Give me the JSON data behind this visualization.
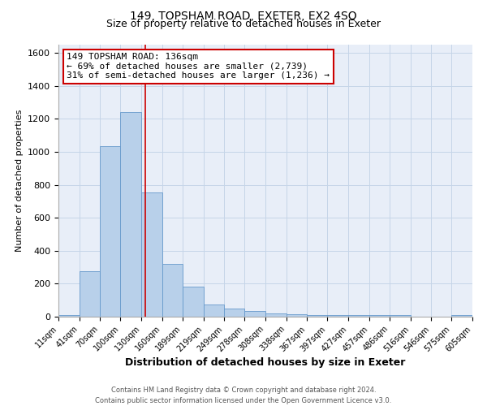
{
  "title": "149, TOPSHAM ROAD, EXETER, EX2 4SQ",
  "subtitle": "Size of property relative to detached houses in Exeter",
  "xlabel": "Distribution of detached houses by size in Exeter",
  "ylabel": "Number of detached properties",
  "bar_color": "#b8d0ea",
  "bar_edge_color": "#6699cc",
  "background_color": "#e8eef8",
  "grid_color": "#c5d5e8",
  "vline_x": 136,
  "vline_color": "#cc0000",
  "bin_edges": [
    11,
    41,
    70,
    100,
    130,
    160,
    189,
    219,
    249,
    278,
    308,
    338,
    367,
    397,
    427,
    457,
    486,
    516,
    546,
    575,
    605
  ],
  "bar_heights": [
    10,
    275,
    1035,
    1240,
    755,
    320,
    180,
    75,
    48,
    35,
    20,
    15,
    10,
    10,
    10,
    10,
    10,
    0,
    0,
    10
  ],
  "tick_labels": [
    "11sqm",
    "41sqm",
    "70sqm",
    "100sqm",
    "130sqm",
    "160sqm",
    "189sqm",
    "219sqm",
    "249sqm",
    "278sqm",
    "308sqm",
    "338sqm",
    "367sqm",
    "397sqm",
    "427sqm",
    "457sqm",
    "486sqm",
    "516sqm",
    "546sqm",
    "575sqm",
    "605sqm"
  ],
  "ylim": [
    0,
    1650
  ],
  "yticks": [
    0,
    200,
    400,
    600,
    800,
    1000,
    1200,
    1400,
    1600
  ],
  "annotation_line1": "149 TOPSHAM ROAD: 136sqm",
  "annotation_line2": "← 69% of detached houses are smaller (2,739)",
  "annotation_line3": "31% of semi-detached houses are larger (1,236) →",
  "annotation_box_color": "#ffffff",
  "annotation_box_edge": "#cc0000",
  "footer_text": "Contains HM Land Registry data © Crown copyright and database right 2024.\nContains public sector information licensed under the Open Government Licence v3.0.",
  "title_fontsize": 10,
  "subtitle_fontsize": 9,
  "xlabel_fontsize": 9,
  "ylabel_fontsize": 8,
  "tick_fontsize": 7,
  "ytick_fontsize": 8,
  "annot_fontsize": 8
}
